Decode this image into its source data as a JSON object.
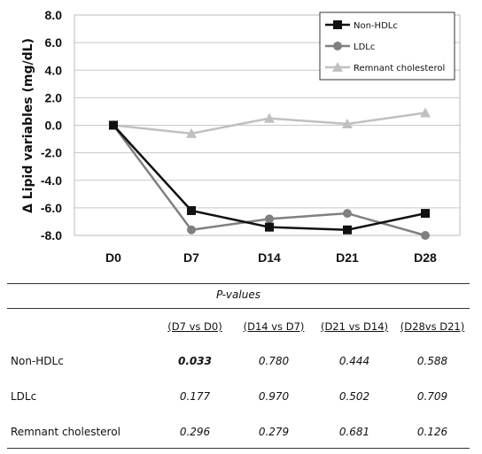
{
  "chart_data": {
    "type": "line",
    "title": "",
    "xlabel": "",
    "ylabel": "Δ Lipid variables (mg/dL)",
    "categories": [
      "D0",
      "D7",
      "D14",
      "D21",
      "D28"
    ],
    "ylim": [
      -8.0,
      8.0
    ],
    "yticks": [
      "8.0",
      "6.0",
      "4.0",
      "2.0",
      "0.0",
      "-2.0",
      "-4.0",
      "-6.0",
      "-8.0"
    ],
    "grid": "horizontal",
    "legend": "top-right",
    "series": [
      {
        "name": "Non-HDLc",
        "values": [
          0.0,
          -6.2,
          -7.4,
          -7.6,
          -6.4
        ],
        "color": "#111111",
        "marker": "square"
      },
      {
        "name": "LDLc",
        "values": [
          0.0,
          -7.6,
          -6.8,
          -6.4,
          -8.2
        ],
        "color": "#808080",
        "marker": "circle"
      },
      {
        "name": "Remnant cholesterol",
        "values": [
          0.0,
          -0.6,
          0.5,
          0.1,
          0.9
        ],
        "color": "#c0c0c0",
        "marker": "triangle"
      }
    ]
  },
  "pvalues": {
    "title": "P-values",
    "columns": [
      "(D7 vs D0)",
      "(D14 vs D7)",
      "(D21 vs D14)",
      "(D28vs D21)"
    ],
    "rows": [
      {
        "label": "Non-HDLc",
        "values": [
          "0.033",
          "0.780",
          "0.444",
          "0.588"
        ]
      },
      {
        "label": "LDLc",
        "values": [
          "0.177",
          "0.970",
          "0.502",
          "0.709"
        ]
      },
      {
        "label": "Remnant cholesterol",
        "values": [
          "0.296",
          "0.279",
          "0.681",
          "0.126"
        ]
      }
    ]
  }
}
